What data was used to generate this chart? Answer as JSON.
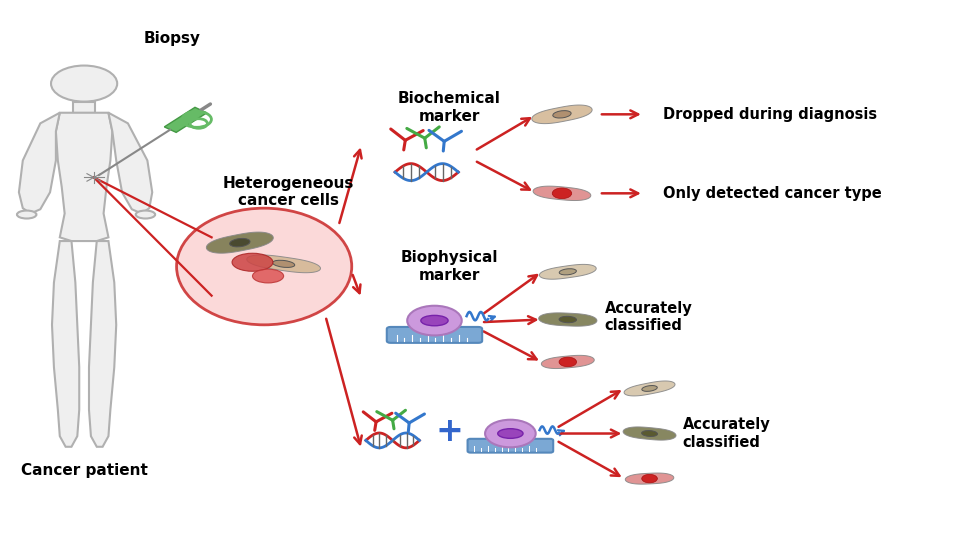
{
  "background_color": "#ffffff",
  "fig_width": 9.76,
  "fig_height": 5.33,
  "dpi": 100,
  "arrow_color": "#cc2222",
  "arrow_lw": 1.8,
  "text_color": "#000000",
  "labels": {
    "biopsy": "Biopsy",
    "cancer_patient": "Cancer patient",
    "heterogeneous": "Heterogeneous\ncancer cells",
    "biochemical": "Biochemical\nmarker",
    "biophysical": "Biophysical\nmarker",
    "dropped": "Dropped during diagnosis",
    "only_detected": "Only detected cancer type",
    "accurately1": "Accurately\nclassified",
    "accurately2": "Accurately\nclassified"
  }
}
